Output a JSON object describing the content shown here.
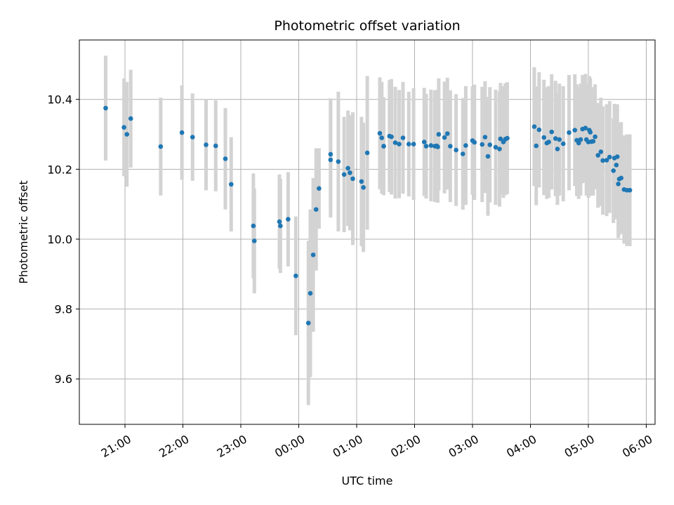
{
  "chart_data": {
    "type": "scatter",
    "title": "Photometric offset variation",
    "xlabel": "UTC time",
    "ylabel": "Photometric offset",
    "x_ticks": [
      "21:00",
      "22:00",
      "23:00",
      "00:00",
      "01:00",
      "02:00",
      "03:00",
      "04:00",
      "05:00",
      "06:00"
    ],
    "y_ticks": [
      "9.6",
      "9.8",
      "10.0",
      "10.2",
      "10.4"
    ],
    "ylim": [
      9.47,
      10.57
    ],
    "grid": true,
    "colors": {
      "points": "#1f77b4",
      "errorbars": "#d3d3d3",
      "grid": "#b0b0b0"
    },
    "series": [
      {
        "x": [
          "20:40",
          "20:59",
          "21:02",
          "21:06",
          "21:37",
          "21:59",
          "22:10",
          "22:24",
          "22:34",
          "22:44",
          "22:50",
          "23:13",
          "23:14",
          "23:40",
          "23:41",
          "23:49",
          "23:57",
          "00:10",
          "00:12",
          "00:15",
          "00:18",
          "00:21",
          "00:33",
          "00:33",
          "00:41",
          "00:47",
          "00:51",
          "00:53",
          "00:56",
          "01:05",
          "01:07",
          "01:11",
          "01:24",
          "01:26",
          "01:28",
          "01:28",
          "01:34",
          "01:36",
          "01:40",
          "01:44",
          "01:48",
          "01:54",
          "01:59",
          "02:10",
          "02:12",
          "02:17",
          "02:21",
          "02:23",
          "02:24",
          "02:25",
          "02:31",
          "02:34",
          "02:37",
          "02:43",
          "02:50",
          "02:53",
          "03:00",
          "03:02",
          "03:10",
          "03:13",
          "03:16",
          "03:18",
          "03:24",
          "03:28",
          "03:29",
          "03:32",
          "03:34",
          "03:36",
          "04:04",
          "04:06",
          "04:09",
          "04:14",
          "04:17",
          "04:19",
          "04:22",
          "04:26",
          "04:28",
          "04:30",
          "04:34",
          "04:40",
          "04:46",
          "04:48",
          "04:50",
          "04:52",
          "04:54",
          "04:57",
          "04:58",
          "05:00",
          "05:01",
          "05:02",
          "05:03",
          "05:05",
          "05:07",
          "05:10",
          "05:13",
          "05:15",
          "05:19",
          "05:22",
          "05:26",
          "05:27",
          "05:29",
          "05:30",
          "05:31",
          "05:32",
          "05:34",
          "05:37",
          "05:40",
          "05:43"
        ],
        "y": [
          10.375,
          10.32,
          10.3,
          10.345,
          10.265,
          10.305,
          10.292,
          10.27,
          10.267,
          10.23,
          10.157,
          10.038,
          9.995,
          10.05,
          10.038,
          10.057,
          9.895,
          9.76,
          9.845,
          9.955,
          10.085,
          10.145,
          10.243,
          10.227,
          10.222,
          10.185,
          10.203,
          10.19,
          10.173,
          10.165,
          10.148,
          10.247,
          10.303,
          10.29,
          10.266,
          10.266,
          10.295,
          10.293,
          10.276,
          10.272,
          10.29,
          10.272,
          10.272,
          10.278,
          10.266,
          10.268,
          10.266,
          10.267,
          10.264,
          10.3,
          10.291,
          10.302,
          10.266,
          10.255,
          10.244,
          10.268,
          10.282,
          10.277,
          10.271,
          10.292,
          10.237,
          10.27,
          10.263,
          10.258,
          10.287,
          10.278,
          10.286,
          10.289,
          10.322,
          10.267,
          10.313,
          10.291,
          10.275,
          10.278,
          10.307,
          10.288,
          10.258,
          10.285,
          10.273,
          10.305,
          10.312,
          10.283,
          10.275,
          10.285,
          10.315,
          10.318,
          10.285,
          10.278,
          10.312,
          10.306,
          10.279,
          10.28,
          10.293,
          10.24,
          10.25,
          10.225,
          10.226,
          10.235,
          10.196,
          10.232,
          10.212,
          10.236,
          10.158,
          10.172,
          10.175,
          10.142,
          10.14,
          10.14
        ],
        "err": [
          0.15,
          0.14,
          0.15,
          0.14,
          0.14,
          0.135,
          0.125,
          0.13,
          0.13,
          0.145,
          0.135,
          0.15,
          0.15,
          0.135,
          0.135,
          0.135,
          0.17,
          0.235,
          0.24,
          0.22,
          0.175,
          0.115,
          0.16,
          0.165,
          0.2,
          0.165,
          0.165,
          0.165,
          0.19,
          0.185,
          0.185,
          0.22,
          0.16,
          0.16,
          0.14,
          0.14,
          0.16,
          0.165,
          0.16,
          0.155,
          0.16,
          0.15,
          0.16,
          0.155,
          0.15,
          0.16,
          0.16,
          0.16,
          0.16,
          0.16,
          0.16,
          0.16,
          0.16,
          0.16,
          0.16,
          0.17,
          0.155,
          0.165,
          0.165,
          0.16,
          0.17,
          0.165,
          0.165,
          0.165,
          0.16,
          0.16,
          0.16,
          0.16,
          0.17,
          0.17,
          0.165,
          0.165,
          0.16,
          0.16,
          0.165,
          0.165,
          0.16,
          0.16,
          0.165,
          0.165,
          0.16,
          0.16,
          0.16,
          0.16,
          0.155,
          0.155,
          0.16,
          0.16,
          0.155,
          0.155,
          0.155,
          0.155,
          0.15,
          0.15,
          0.155,
          0.155,
          0.16,
          0.16,
          0.15,
          0.155,
          0.155,
          0.15,
          0.155,
          0.16,
          0.16,
          0.155,
          0.16,
          0.16
        ]
      }
    ]
  }
}
